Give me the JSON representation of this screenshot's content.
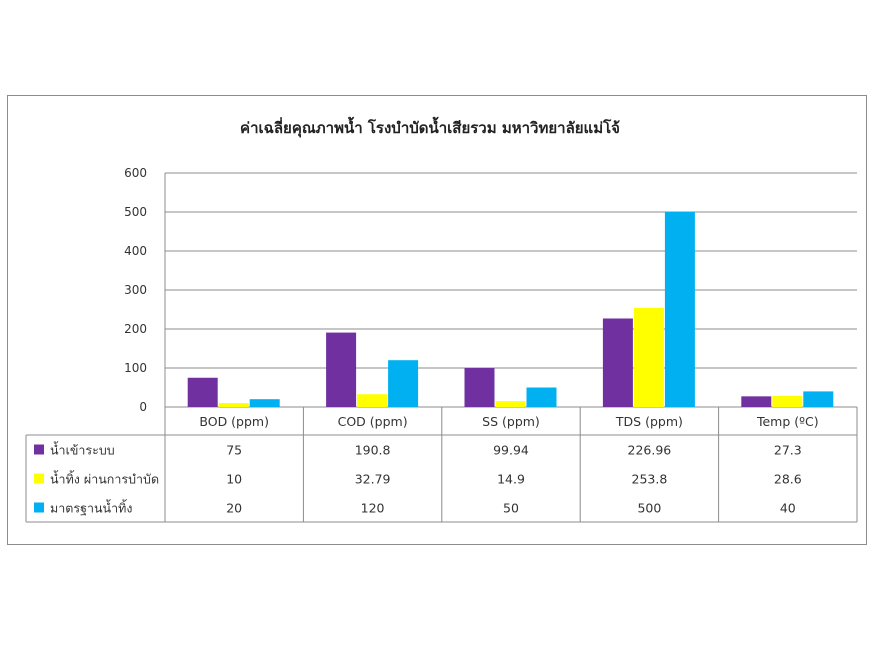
{
  "chart_data": {
    "type": "bar",
    "title": "ค่าเฉลี่ยคุณภาพน้ำ โรงบำบัดน้ำเสียรวม มหาวิทยาลัยแม่โจ้",
    "categories": [
      "BOD (ppm)",
      "COD (ppm)",
      "SS (ppm)",
      "TDS (ppm)",
      "Temp (ºC)"
    ],
    "series": [
      {
        "name": "น้ำเข้าระบบ",
        "color": "#7030a0",
        "values": [
          75,
          190.8,
          99.94,
          226.96,
          27.3
        ],
        "labels": [
          "75",
          "190.8",
          "99.94",
          "226.96",
          "27.3"
        ]
      },
      {
        "name": "น้ำทิ้ง ผ่านการบำบัด",
        "color": "#ffff00",
        "values": [
          10,
          32.79,
          14.9,
          253.8,
          28.6
        ],
        "labels": [
          "10",
          "32.79",
          "14.9",
          "253.8",
          "28.6"
        ]
      },
      {
        "name": "มาตรฐานน้ำทิ้ง",
        "color": "#00b0f0",
        "values": [
          20,
          120,
          50,
          500,
          40
        ],
        "labels": [
          "20",
          "120",
          "50",
          "500",
          "40"
        ]
      }
    ],
    "y_ticks": [
      "0",
      "100",
      "200",
      "300",
      "400",
      "500",
      "600"
    ],
    "ylim": [
      0,
      600
    ],
    "grid": true,
    "legend": "data-table"
  }
}
